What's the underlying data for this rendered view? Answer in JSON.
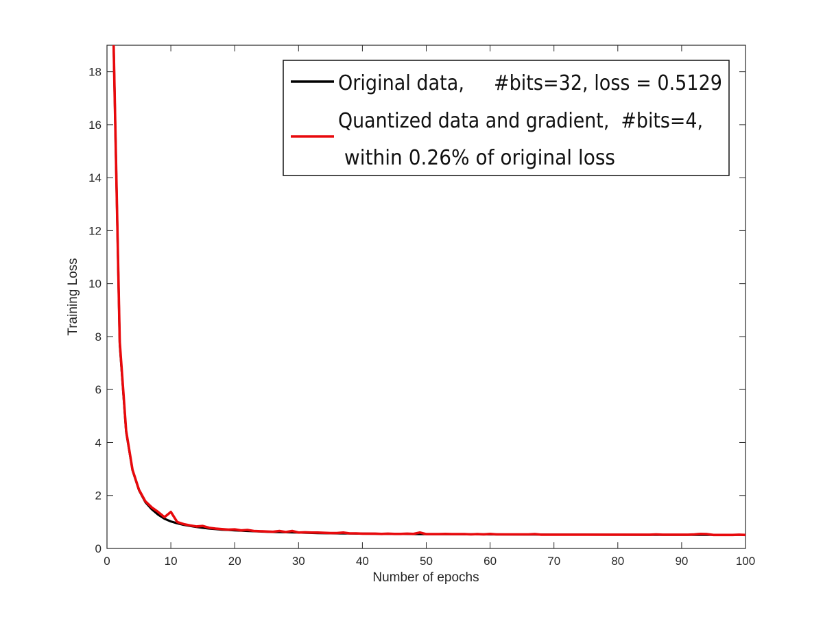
{
  "chart_data": {
    "type": "line",
    "title": "",
    "xlabel": "Number of epochs",
    "ylabel": "Training Loss",
    "xlim": [
      0,
      100
    ],
    "ylim": [
      0,
      19
    ],
    "xticks": [
      0,
      10,
      20,
      30,
      40,
      50,
      60,
      70,
      80,
      90,
      100
    ],
    "yticks": [
      0,
      2,
      4,
      6,
      8,
      10,
      12,
      14,
      16,
      18
    ],
    "grid": false,
    "legend": {
      "placement": "top-right",
      "entries": [
        {
          "lines": [
            "Original data,     #bits=32, loss = 0.5129"
          ]
        },
        {
          "lines": [
            "Quantized data and gradient,  #bits=4,",
            " within 0.26% of original loss"
          ]
        }
      ]
    },
    "series": [
      {
        "color": "#000000",
        "x": [
          1,
          2,
          3,
          4,
          5,
          6,
          7,
          8,
          9,
          10,
          11,
          12,
          13,
          14,
          15,
          16,
          17,
          18,
          19,
          20,
          22,
          24,
          26,
          28,
          30,
          33,
          36,
          40,
          45,
          50,
          55,
          60,
          65,
          70,
          75,
          80,
          85,
          90,
          95,
          100
        ],
        "y": [
          19.5,
          7.7,
          4.4,
          2.95,
          2.2,
          1.75,
          1.48,
          1.28,
          1.12,
          1.02,
          0.95,
          0.89,
          0.85,
          0.81,
          0.78,
          0.75,
          0.73,
          0.71,
          0.7,
          0.68,
          0.66,
          0.64,
          0.62,
          0.61,
          0.6,
          0.58,
          0.57,
          0.56,
          0.55,
          0.54,
          0.535,
          0.53,
          0.525,
          0.522,
          0.52,
          0.518,
          0.516,
          0.515,
          0.514,
          0.513
        ]
      },
      {
        "color": "#e8090c",
        "x": [
          1,
          2,
          3,
          4,
          5,
          6,
          7,
          8,
          9,
          10,
          11,
          12,
          13,
          14,
          15,
          16,
          17,
          18,
          19,
          20,
          21,
          22,
          23,
          24,
          25,
          26,
          27,
          28,
          29,
          30,
          31,
          32,
          33,
          34,
          35,
          36,
          37,
          38,
          39,
          40,
          41,
          42,
          43,
          44,
          45,
          46,
          47,
          48,
          49,
          50,
          51,
          52,
          53,
          54,
          55,
          56,
          57,
          58,
          59,
          60,
          61,
          62,
          63,
          64,
          65,
          66,
          67,
          68,
          69,
          70,
          71,
          72,
          73,
          74,
          75,
          76,
          77,
          78,
          79,
          80,
          81,
          82,
          83,
          84,
          85,
          86,
          87,
          88,
          89,
          90,
          91,
          92,
          93,
          94,
          95,
          96,
          97,
          98,
          99,
          100
        ],
        "y": [
          19.5,
          7.8,
          4.45,
          2.97,
          2.22,
          1.78,
          1.55,
          1.38,
          1.18,
          1.38,
          1.0,
          0.92,
          0.87,
          0.83,
          0.85,
          0.78,
          0.75,
          0.73,
          0.71,
          0.72,
          0.68,
          0.7,
          0.66,
          0.65,
          0.64,
          0.63,
          0.66,
          0.62,
          0.66,
          0.6,
          0.61,
          0.6,
          0.6,
          0.59,
          0.58,
          0.58,
          0.6,
          0.57,
          0.57,
          0.56,
          0.56,
          0.56,
          0.55,
          0.56,
          0.55,
          0.55,
          0.56,
          0.55,
          0.6,
          0.54,
          0.54,
          0.54,
          0.55,
          0.54,
          0.54,
          0.54,
          0.53,
          0.54,
          0.53,
          0.55,
          0.53,
          0.53,
          0.53,
          0.53,
          0.53,
          0.53,
          0.54,
          0.52,
          0.52,
          0.52,
          0.52,
          0.52,
          0.52,
          0.52,
          0.52,
          0.52,
          0.52,
          0.52,
          0.52,
          0.52,
          0.52,
          0.52,
          0.52,
          0.52,
          0.52,
          0.53,
          0.52,
          0.52,
          0.52,
          0.52,
          0.52,
          0.53,
          0.55,
          0.54,
          0.51,
          0.51,
          0.51,
          0.51,
          0.52,
          0.51
        ]
      }
    ]
  }
}
